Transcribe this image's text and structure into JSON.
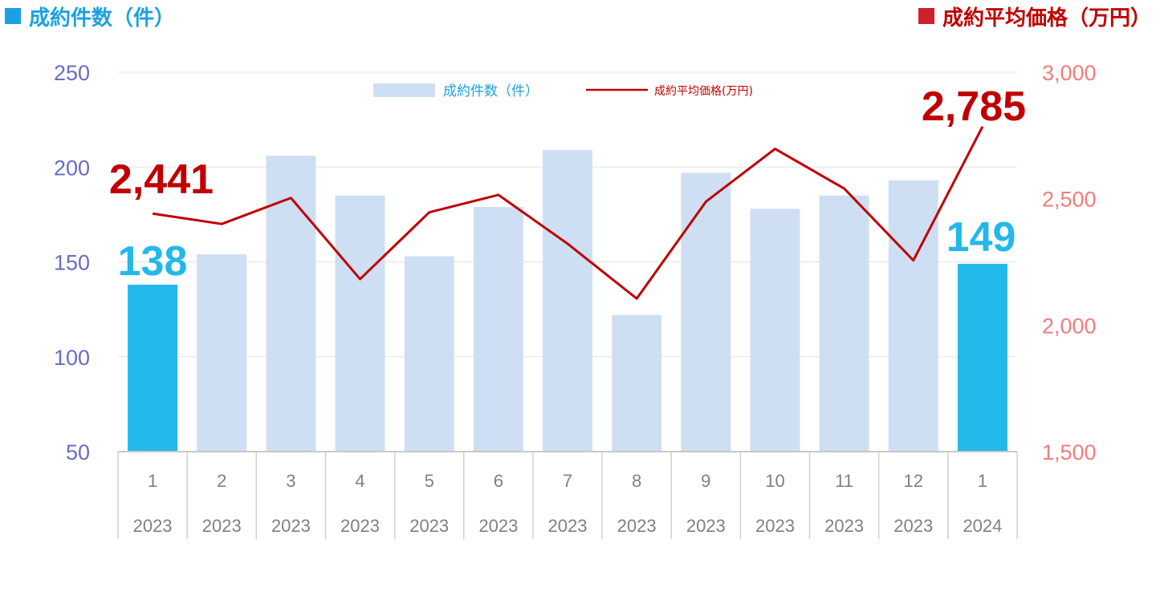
{
  "header": {
    "left_title": "成約件数（件）",
    "right_title": "成約平均価格（万円）"
  },
  "colors": {
    "bar_light": "#cfdff3",
    "bar_highlight": "#23b8ea",
    "line": "#c00000",
    "left_axis": "#6b6bc9",
    "right_axis": "#f47c7c"
  },
  "chart_data": {
    "type": "bar",
    "categories": [
      "1",
      "2",
      "3",
      "4",
      "5",
      "6",
      "7",
      "8",
      "9",
      "10",
      "11",
      "12",
      "1"
    ],
    "category_years": [
      "2023",
      "2023",
      "2023",
      "2023",
      "2023",
      "2023",
      "2023",
      "2023",
      "2023",
      "2023",
      "2023",
      "2023",
      "2024"
    ],
    "series": [
      {
        "name": "成約件数（件）",
        "type": "bar",
        "axis": "left",
        "values": [
          138,
          154,
          206,
          185,
          153,
          179,
          209,
          122,
          197,
          178,
          185,
          193,
          149
        ],
        "highlight": [
          true,
          false,
          false,
          false,
          false,
          false,
          false,
          false,
          false,
          false,
          false,
          false,
          true
        ]
      },
      {
        "name": "成約平均価格(万円)",
        "type": "line",
        "axis": "right",
        "values": [
          2441,
          2400,
          2503,
          2182,
          2446,
          2515,
          2322,
          2105,
          2488,
          2697,
          2540,
          2256,
          2785
        ]
      }
    ],
    "left_axis": {
      "ylim": [
        50,
        250
      ],
      "ticks": [
        "50",
        "100",
        "150",
        "200",
        "250"
      ]
    },
    "right_axis": {
      "ylim": [
        1500,
        3000
      ],
      "ticks": [
        "1,500",
        "2,000",
        "2,500",
        "3,000"
      ]
    },
    "legend": {
      "position": "top-center",
      "bar_label": "成約件数（件）",
      "line_label": "成約平均価格(万円)"
    },
    "callouts": {
      "first_count": "138",
      "last_count": "149",
      "first_price": "2,441",
      "last_price": "2,785"
    },
    "grid": true
  }
}
